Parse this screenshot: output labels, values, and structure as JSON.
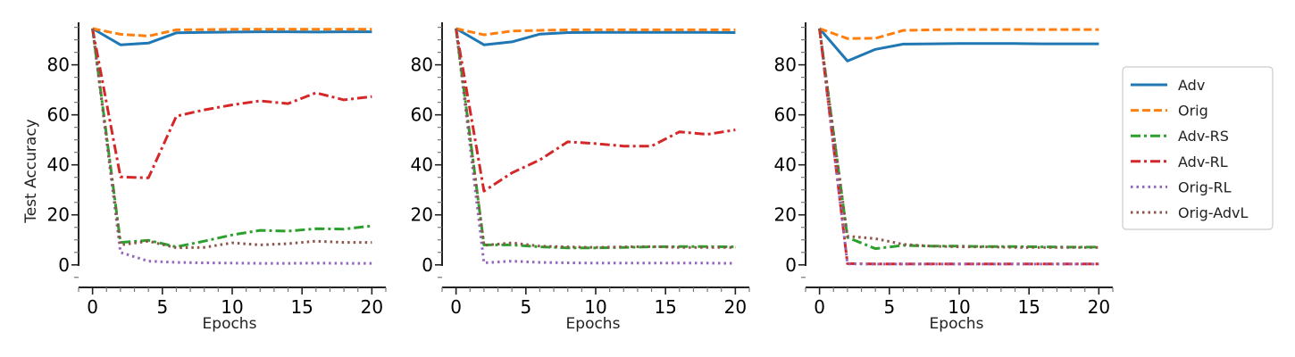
{
  "chart_data": [
    {
      "type": "line",
      "title": "",
      "xlabel": "Epochs",
      "ylabel": "Test Accuracy",
      "xlim": [
        -1,
        21
      ],
      "ylim": [
        -9,
        97
      ],
      "xticks": [
        0,
        5,
        10,
        15,
        20
      ],
      "yticks": [
        0,
        20,
        40,
        60,
        80
      ],
      "grid": false,
      "x": [
        0,
        2,
        4,
        6,
        8,
        10,
        12,
        14,
        16,
        18,
        20
      ],
      "series": [
        {
          "name": "Adv",
          "values": [
            94.5,
            88.0,
            88.7,
            92.8,
            93.0,
            93.1,
            93.2,
            93.2,
            93.1,
            93.2,
            93.2
          ]
        },
        {
          "name": "Orig",
          "values": [
            94.5,
            92.2,
            91.5,
            94.0,
            94.1,
            94.2,
            94.2,
            94.2,
            94.2,
            94.2,
            94.2
          ]
        },
        {
          "name": "Adv-RS",
          "values": [
            94.5,
            9.0,
            9.8,
            7.2,
            9.5,
            12.0,
            13.8,
            13.5,
            14.5,
            14.3,
            15.6
          ]
        },
        {
          "name": "Adv-RL",
          "values": [
            94.5,
            35.2,
            34.8,
            59.5,
            62.0,
            64.0,
            65.6,
            64.5,
            68.8,
            66.0,
            67.3
          ]
        },
        {
          "name": "Orig-RL",
          "values": [
            94.5,
            5.0,
            1.5,
            1.0,
            0.8,
            0.7,
            0.6,
            0.6,
            0.7,
            0.6,
            0.6
          ]
        },
        {
          "name": "Orig-AdvL",
          "values": [
            94.5,
            8.0,
            9.5,
            6.8,
            7.0,
            8.8,
            8.0,
            8.5,
            9.5,
            9.0,
            9.0
          ]
        }
      ]
    },
    {
      "type": "line",
      "title": "",
      "xlabel": "Epochs",
      "ylabel": "",
      "xlim": [
        -1,
        21
      ],
      "ylim": [
        -9,
        97
      ],
      "xticks": [
        0,
        5,
        10,
        15,
        20
      ],
      "yticks": [
        0,
        20,
        40,
        60,
        80
      ],
      "grid": false,
      "x": [
        0,
        2,
        4,
        6,
        8,
        10,
        12,
        14,
        16,
        18,
        20
      ],
      "series": [
        {
          "name": "Adv",
          "values": [
            94.5,
            88.0,
            89.2,
            92.3,
            92.9,
            93.0,
            93.0,
            93.0,
            93.0,
            93.0,
            92.9
          ]
        },
        {
          "name": "Orig",
          "values": [
            94.5,
            92.0,
            93.5,
            93.8,
            94.0,
            94.0,
            94.0,
            94.0,
            94.0,
            94.0,
            94.0
          ]
        },
        {
          "name": "Adv-RS",
          "values": [
            94.5,
            8.0,
            8.0,
            7.2,
            6.8,
            6.8,
            7.0,
            7.2,
            7.3,
            7.3,
            7.2
          ]
        },
        {
          "name": "Adv-RL",
          "values": [
            94.5,
            29.5,
            36.8,
            42.0,
            49.2,
            48.5,
            47.5,
            47.5,
            53.2,
            52.2,
            54.0
          ]
        },
        {
          "name": "Orig-RL",
          "values": [
            94.5,
            0.8,
            1.5,
            1.0,
            0.8,
            0.7,
            0.7,
            0.7,
            0.7,
            0.7,
            0.6
          ]
        },
        {
          "name": "Orig-AdvL",
          "values": [
            94.5,
            7.8,
            8.8,
            7.5,
            7.2,
            7.0,
            7.2,
            7.3,
            7.0,
            7.0,
            7.0
          ]
        }
      ]
    },
    {
      "type": "line",
      "title": "",
      "xlabel": "Epochs",
      "ylabel": "",
      "xlim": [
        -1,
        21
      ],
      "ylim": [
        -9,
        97
      ],
      "xticks": [
        0,
        5,
        10,
        15,
        20
      ],
      "yticks": [
        0,
        20,
        40,
        60,
        80
      ],
      "grid": false,
      "x": [
        0,
        2,
        4,
        6,
        8,
        10,
        12,
        14,
        16,
        18,
        20
      ],
      "series": [
        {
          "name": "Adv",
          "values": [
            94.5,
            81.5,
            86.2,
            88.3,
            88.4,
            88.5,
            88.5,
            88.5,
            88.4,
            88.4,
            88.4
          ]
        },
        {
          "name": "Orig",
          "values": [
            94.5,
            90.5,
            90.6,
            93.8,
            94.0,
            94.1,
            94.1,
            94.1,
            94.1,
            94.1,
            94.1
          ]
        },
        {
          "name": "Adv-RS",
          "values": [
            94.5,
            11.0,
            6.5,
            7.8,
            7.5,
            7.5,
            7.3,
            7.3,
            7.2,
            7.1,
            7.1
          ]
        },
        {
          "name": "Adv-RL",
          "values": [
            94.5,
            0.5,
            0.4,
            0.4,
            0.4,
            0.4,
            0.4,
            0.4,
            0.4,
            0.4,
            0.4
          ]
        },
        {
          "name": "Orig-RL",
          "values": [
            94.5,
            0.4,
            0.3,
            0.3,
            0.3,
            0.3,
            0.3,
            0.3,
            0.3,
            0.3,
            0.3
          ]
        },
        {
          "name": "Orig-AdvL",
          "values": [
            94.5,
            11.5,
            10.5,
            8.2,
            7.5,
            7.2,
            7.2,
            7.0,
            7.0,
            7.0,
            7.0
          ]
        }
      ]
    }
  ],
  "legend": {
    "placement": "right",
    "entries": [
      "Adv",
      "Orig",
      "Adv-RS",
      "Adv-RL",
      "Orig-RL",
      "Orig-AdvL"
    ]
  },
  "style": {
    "colors": {
      "Adv": "#1f77b4",
      "Orig": "#ff7f0e",
      "Adv-RS": "#2ca02c",
      "Adv-RL": "#d62728",
      "Orig-RL": "#9467bd",
      "Orig-AdvL": "#8c564b"
    },
    "dashes": {
      "Adv": "solid",
      "Orig": "dashed",
      "Adv-RS": "dashdot",
      "Adv-RL": "dashdot",
      "Orig-RL": "dotted",
      "Orig-AdvL": "dotted"
    }
  }
}
